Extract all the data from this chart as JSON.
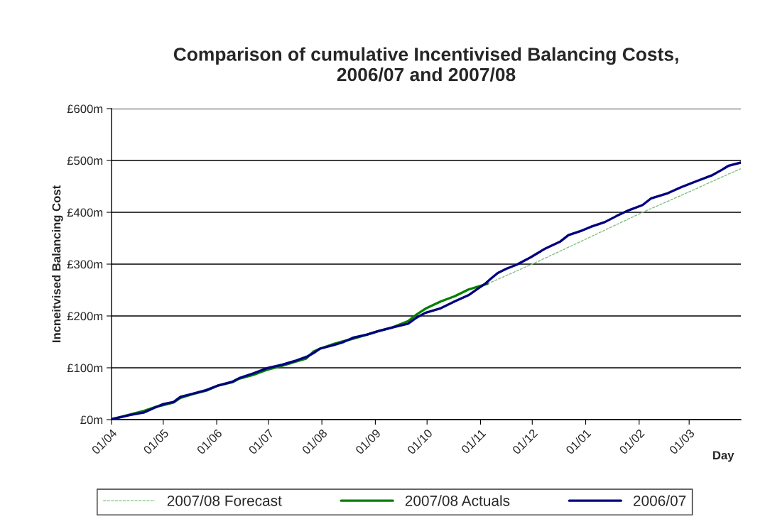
{
  "chart_data": {
    "type": "line",
    "title": "Comparison of cumulative Incentivised Balancing Costs,\n2006/07 and 2007/08",
    "xlabel": "Day",
    "ylabel": "Incneitvised Balancing Cost",
    "xlim": [
      "2007-04-01",
      "2008-03-31"
    ],
    "xticks": [
      {
        "value": "2007-04-01",
        "label": "01/04"
      },
      {
        "value": "2007-05-01",
        "label": "01/05"
      },
      {
        "value": "2007-06-01",
        "label": "01/06"
      },
      {
        "value": "2007-07-01",
        "label": "01/07"
      },
      {
        "value": "2007-08-01",
        "label": "01/08"
      },
      {
        "value": "2007-09-01",
        "label": "01/09"
      },
      {
        "value": "2007-10-01",
        "label": "01/10"
      },
      {
        "value": "2007-11-01",
        "label": "01/11"
      },
      {
        "value": "2007-12-01",
        "label": "01/12"
      },
      {
        "value": "2008-01-01",
        "label": "01/01"
      },
      {
        "value": "2008-02-01",
        "label": "01/02"
      },
      {
        "value": "2008-03-01",
        "label": "01/03"
      }
    ],
    "ylim": [
      0,
      600
    ],
    "yticks": [
      {
        "value": 0,
        "label": "£0m"
      },
      {
        "value": 100,
        "label": "£100m"
      },
      {
        "value": 200,
        "label": "£200m"
      },
      {
        "value": 300,
        "label": "£300m"
      },
      {
        "value": 400,
        "label": "£400m"
      },
      {
        "value": 500,
        "label": "£500m"
      },
      {
        "value": 600,
        "label": "£600m"
      }
    ],
    "grid": "y",
    "legend": "bottom",
    "marker": "none",
    "series": [
      {
        "name": "2007/08 Forecast",
        "color": "#80c080",
        "line_style": "dashed",
        "x": [
          "2007-11-05",
          "2007-12-01",
          "2007-12-30",
          "2008-02-03",
          "2008-02-25",
          "2008-03-24",
          "2008-03-31"
        ],
        "values": [
          262,
          300,
          345,
          400,
          432,
          474,
          484
        ]
      },
      {
        "name": "2007/08 Actuals",
        "color": "#008000",
        "line_style": "solid",
        "x": [
          "2007-04-01",
          "2007-04-12",
          "2007-04-20",
          "2007-04-26",
          "2007-05-01",
          "2007-05-07",
          "2007-05-11",
          "2007-05-18",
          "2007-05-26",
          "2007-06-02",
          "2007-06-10",
          "2007-06-14",
          "2007-06-22",
          "2007-06-30",
          "2007-07-09",
          "2007-07-17",
          "2007-07-23",
          "2007-07-27",
          "2007-07-31",
          "2007-08-08",
          "2007-08-13",
          "2007-08-19",
          "2007-08-27",
          "2007-09-02",
          "2007-09-11",
          "2007-09-20",
          "2007-09-25",
          "2007-09-30",
          "2007-10-09",
          "2007-10-17",
          "2007-10-25",
          "2007-10-31",
          "2007-11-05"
        ],
        "values": [
          0,
          10,
          17,
          24,
          28,
          33,
          42,
          49,
          56,
          66,
          72,
          79,
          86,
          96,
          104,
          112,
          118,
          131,
          137,
          146,
          151,
          156,
          164,
          170,
          178,
          190,
          203,
          214,
          228,
          238,
          251,
          257,
          262
        ]
      },
      {
        "name": "2006/07",
        "color": "#000080",
        "line_style": "solid",
        "x": [
          "2007-04-01",
          "2007-04-12",
          "2007-04-20",
          "2007-04-26",
          "2007-05-01",
          "2007-05-07",
          "2007-05-11",
          "2007-05-18",
          "2007-05-26",
          "2007-06-02",
          "2007-06-10",
          "2007-06-14",
          "2007-06-22",
          "2007-06-30",
          "2007-07-09",
          "2007-07-17",
          "2007-07-23",
          "2007-07-27",
          "2007-07-31",
          "2007-08-08",
          "2007-08-13",
          "2007-08-19",
          "2007-08-27",
          "2007-09-03",
          "2007-09-11",
          "2007-09-20",
          "2007-09-25",
          "2007-09-30",
          "2007-10-09",
          "2007-10-17",
          "2007-10-25",
          "2007-10-31",
          "2007-11-04",
          "2007-11-07",
          "2007-11-11",
          "2007-11-16",
          "2007-11-22",
          "2007-11-30",
          "2007-12-08",
          "2007-12-17",
          "2007-12-22",
          "2007-12-30",
          "2008-01-04",
          "2008-01-12",
          "2008-01-19",
          "2008-01-26",
          "2008-02-03",
          "2008-02-08",
          "2008-02-17",
          "2008-02-25",
          "2008-03-06",
          "2008-03-14",
          "2008-03-20",
          "2008-03-24",
          "2008-03-31"
        ],
        "values": [
          1,
          9,
          14,
          23,
          30,
          34,
          44,
          50,
          57,
          66,
          73,
          80,
          89,
          99,
          106,
          114,
          121,
          128,
          137,
          144,
          149,
          158,
          164,
          171,
          178,
          185,
          197,
          206,
          215,
          228,
          240,
          254,
          263,
          272,
          283,
          291,
          299,
          313,
          329,
          343,
          356,
          365,
          372,
          381,
          393,
          404,
          414,
          427,
          436,
          448,
          461,
          471,
          482,
          490,
          496
        ]
      }
    ]
  }
}
